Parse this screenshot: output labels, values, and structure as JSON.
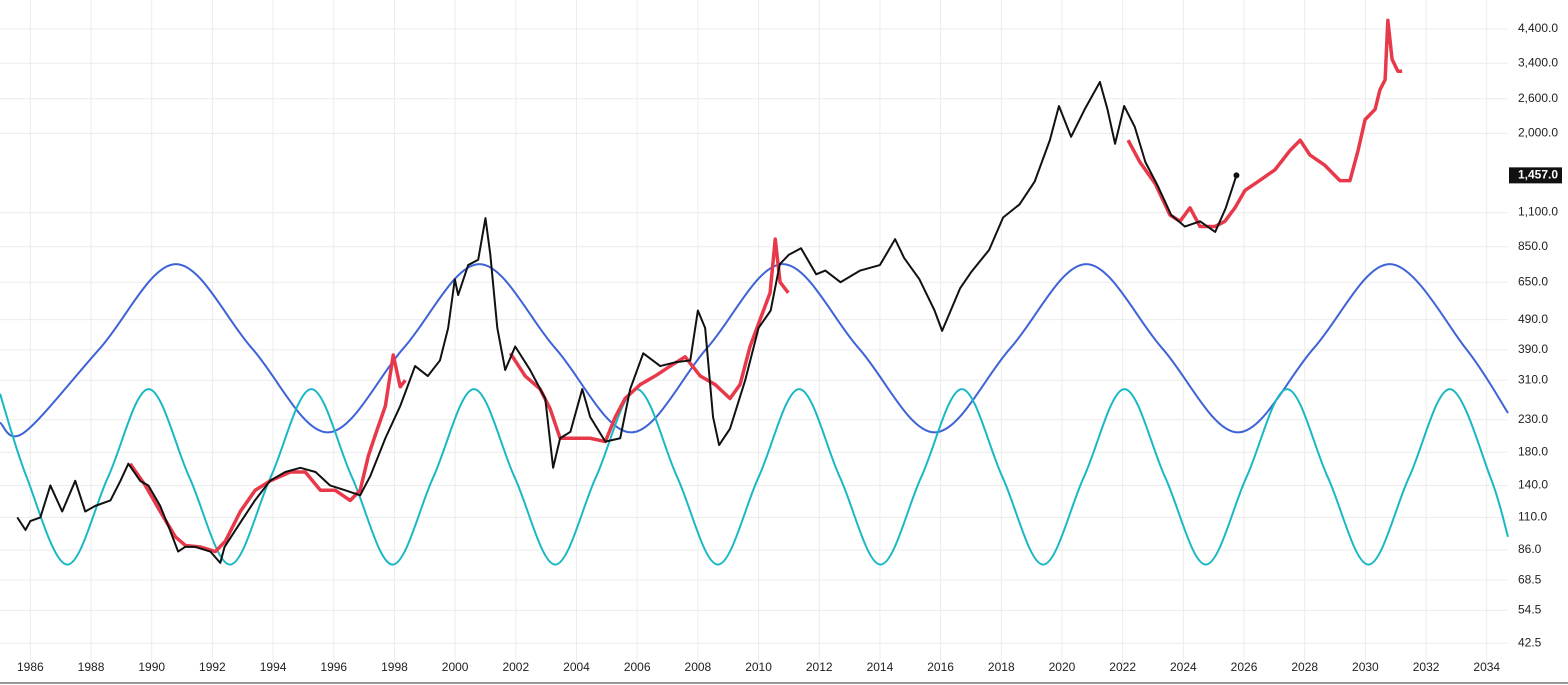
{
  "chart_data": {
    "type": "line",
    "log_scale": true,
    "grid": true,
    "xlim": [
      1985.0,
      2034.7
    ],
    "xticks": [
      1986,
      1988,
      1990,
      1992,
      1994,
      1996,
      1998,
      2000,
      2002,
      2004,
      2006,
      2008,
      2010,
      2012,
      2014,
      2016,
      2018,
      2020,
      2022,
      2024,
      2026,
      2028,
      2030,
      2032,
      2034
    ],
    "ylim": [
      38.9,
      5480
    ],
    "yticks": [
      {
        "value": 42.5,
        "label": "42.5"
      },
      {
        "value": 54.5,
        "label": "54.5"
      },
      {
        "value": 68.5,
        "label": "68.5"
      },
      {
        "value": 86,
        "label": "86.0"
      },
      {
        "value": 110,
        "label": "110.0"
      },
      {
        "value": 140,
        "label": "140.0"
      },
      {
        "value": 180,
        "label": "180.0"
      },
      {
        "value": 230,
        "label": "230.0"
      },
      {
        "value": 310,
        "label": "310.0"
      },
      {
        "value": 390,
        "label": "390.0"
      },
      {
        "value": 490,
        "label": "490.0"
      },
      {
        "value": 650,
        "label": "650.0"
      },
      {
        "value": 850,
        "label": "850.0"
      },
      {
        "value": 1100,
        "label": "1,100.0"
      },
      {
        "value": 2000,
        "label": "2,000.0"
      },
      {
        "value": 2600,
        "label": "2,600.0"
      },
      {
        "value": 3400,
        "label": "3,400.0"
      },
      {
        "value": 4400,
        "label": "4,400.0"
      }
    ],
    "last_price": {
      "value": 1457,
      "label": "1,457.0"
    },
    "series": [
      {
        "color": "#3d63d6",
        "smooth": true,
        "x": [
          1985.0,
          1985.8,
          1988.3,
          1990.8,
          1993.3,
          1995.8,
          1998.3,
          2000.8,
          2003.3,
          2005.8,
          2008.3,
          2010.8,
          2013.3,
          2015.8,
          2018.3,
          2020.8,
          2023.3,
          2025.8,
          2028.3,
          2030.8,
          2033.3,
          2034.7
        ],
        "values": [
          225,
          209,
          395,
          745,
          395,
          209,
          395,
          745,
          395,
          209,
          395,
          745,
          395,
          209,
          395,
          745,
          395,
          209,
          395,
          745,
          395,
          242
        ]
      },
      {
        "color": "#1ab8c4",
        "smooth": true,
        "x": [
          1985.0,
          1985.88,
          1987.22,
          1988.56,
          1989.9,
          1991.24,
          1992.58,
          1993.92,
          1995.26,
          1996.6,
          1997.94,
          1999.28,
          2000.62,
          2001.96,
          2003.3,
          2004.64,
          2005.98,
          2007.32,
          2008.66,
          2010.0,
          2011.34,
          2012.68,
          2014.02,
          2015.36,
          2016.7,
          2018.04,
          2019.38,
          2020.72,
          2022.06,
          2023.4,
          2024.74,
          2026.08,
          2027.42,
          2028.76,
          2030.1,
          2031.44,
          2032.78,
          2034.12,
          2034.7
        ],
        "values": [
          280,
          149,
          77,
          149,
          290,
          149,
          77,
          149,
          290,
          149,
          77,
          149,
          290,
          149,
          77,
          149,
          290,
          149,
          77,
          149,
          290,
          149,
          77,
          149,
          290,
          149,
          77,
          149,
          290,
          149,
          77,
          149,
          290,
          149,
          77,
          149,
          290,
          149,
          95
        ]
      },
      {
        "color": "#e8394a",
        "smooth": false,
        "width": 3.5,
        "x": [
          1989.29,
          1989.79,
          1990.28,
          1990.78,
          1991.11,
          1991.6,
          1992.1,
          1992.43,
          1992.92,
          1993.41,
          1993.91,
          1994.57,
          1995.06,
          1995.56,
          1996.05,
          1996.54,
          1996.87,
          1997.14,
          1997.37,
          1997.7,
          1997.96,
          1998.19,
          1998.36,
          2000.0,
          2001.82,
          2002.31,
          2002.8,
          2003.13,
          2003.46,
          2003.96,
          2004.45,
          2004.95,
          2005.28,
          2005.6,
          2006.1,
          2006.59,
          2007.09,
          2007.58,
          2008.08,
          2008.57,
          2009.06,
          2009.39,
          2009.72,
          2010.05,
          2010.38,
          2010.55,
          2010.71,
          2010.98,
          2016.0,
          2022.18,
          2022.57,
          2023.07,
          2023.56,
          2023.89,
          2024.22,
          2024.55,
          2025.04,
          2025.37,
          2025.7,
          2026.03,
          2026.53,
          2027.02,
          2027.52,
          2027.85,
          2028.17,
          2028.67,
          2029.16,
          2029.49,
          2029.76,
          2029.99,
          2030.32,
          2030.48,
          2030.65,
          2030.74,
          2030.88,
          2031.07,
          2031.21
        ],
        "values": [
          165,
          140,
          115,
          95,
          89,
          88,
          85,
          92,
          115,
          135,
          145,
          155,
          155,
          135,
          135,
          125,
          135,
          175,
          205,
          255,
          375,
          295,
          310,
          null,
          380,
          320,
          290,
          250,
          200,
          200,
          200,
          195,
          235,
          270,
          300,
          320,
          345,
          370,
          320,
          300,
          270,
          300,
          400,
          490,
          600,
          900,
          650,
          600,
          null,
          1900,
          1610,
          1370,
          1080,
          1030,
          1140,
          990,
          990,
          1030,
          1140,
          1300,
          1405,
          1520,
          1760,
          1900,
          1700,
          1570,
          1400,
          1400,
          1760,
          2220,
          2400,
          2780,
          3000,
          4700,
          3500,
          3200,
          3200
        ]
      },
      {
        "color": "#111111",
        "smooth": false,
        "width": 2,
        "x": [
          1985.57,
          1985.84,
          1986.0,
          1986.33,
          1986.66,
          1987.05,
          1987.48,
          1987.81,
          1988.14,
          1988.64,
          1988.97,
          1989.23,
          1989.62,
          1989.89,
          1990.28,
          1990.6,
          1990.87,
          1991.1,
          1991.44,
          1991.93,
          1992.26,
          1992.4,
          1992.9,
          1993.4,
          1993.9,
          1994.4,
          1994.9,
          1995.4,
          1995.88,
          1996.38,
          1996.87,
          1997.2,
          1997.7,
          1998.19,
          1998.68,
          1999.1,
          1999.5,
          1999.77,
          1999.99,
          2000.1,
          2000.43,
          2000.76,
          2001.0,
          2001.16,
          2001.39,
          2001.65,
          2001.98,
          2002.47,
          2002.97,
          2003.23,
          2003.46,
          2003.8,
          2004.19,
          2004.45,
          2004.95,
          2005.44,
          2005.77,
          2006.2,
          2006.76,
          2007.25,
          2007.75,
          2008.0,
          2008.24,
          2008.5,
          2008.7,
          2009.06,
          2009.56,
          2010.0,
          2010.4,
          2010.7,
          2011.0,
          2011.4,
          2011.9,
          2012.2,
          2012.7,
          2013.35,
          2014.0,
          2014.5,
          2014.8,
          2015.3,
          2015.8,
          2016.05,
          2016.64,
          2017.0,
          2017.6,
          2018.06,
          2018.6,
          2019.1,
          2019.6,
          2019.9,
          2020.3,
          2020.75,
          2021.25,
          2021.5,
          2021.75,
          2022.05,
          2022.4,
          2022.75,
          2023.15,
          2023.6,
          2024.05,
          2024.55,
          2025.05,
          2025.4,
          2025.75
        ],
        "values": [
          110,
          100,
          107,
          110,
          140,
          115,
          145,
          115,
          120,
          125,
          145,
          165,
          145,
          140,
          120,
          100,
          85,
          88,
          88,
          85,
          78,
          88,
          105,
          125,
          145,
          155,
          160,
          155,
          140,
          135,
          130,
          150,
          200,
          255,
          345,
          320,
          360,
          460,
          665,
          590,
          740,
          770,
          1055,
          800,
          460,
          335,
          400,
          335,
          270,
          160,
          200,
          210,
          290,
          235,
          195,
          200,
          290,
          380,
          345,
          355,
          360,
          525,
          460,
          235,
          190,
          215,
          310,
          460,
          525,
          745,
          800,
          840,
          690,
          710,
          650,
          710,
          740,
          900,
          780,
          665,
          525,
          450,
          620,
          700,
          830,
          1060,
          1170,
          1390,
          1900,
          2460,
          1950,
          2400,
          2950,
          2400,
          1850,
          2460,
          2100,
          1610,
          1350,
          1080,
          990,
          1030,
          950,
          1140,
          1457
        ]
      }
    ]
  }
}
